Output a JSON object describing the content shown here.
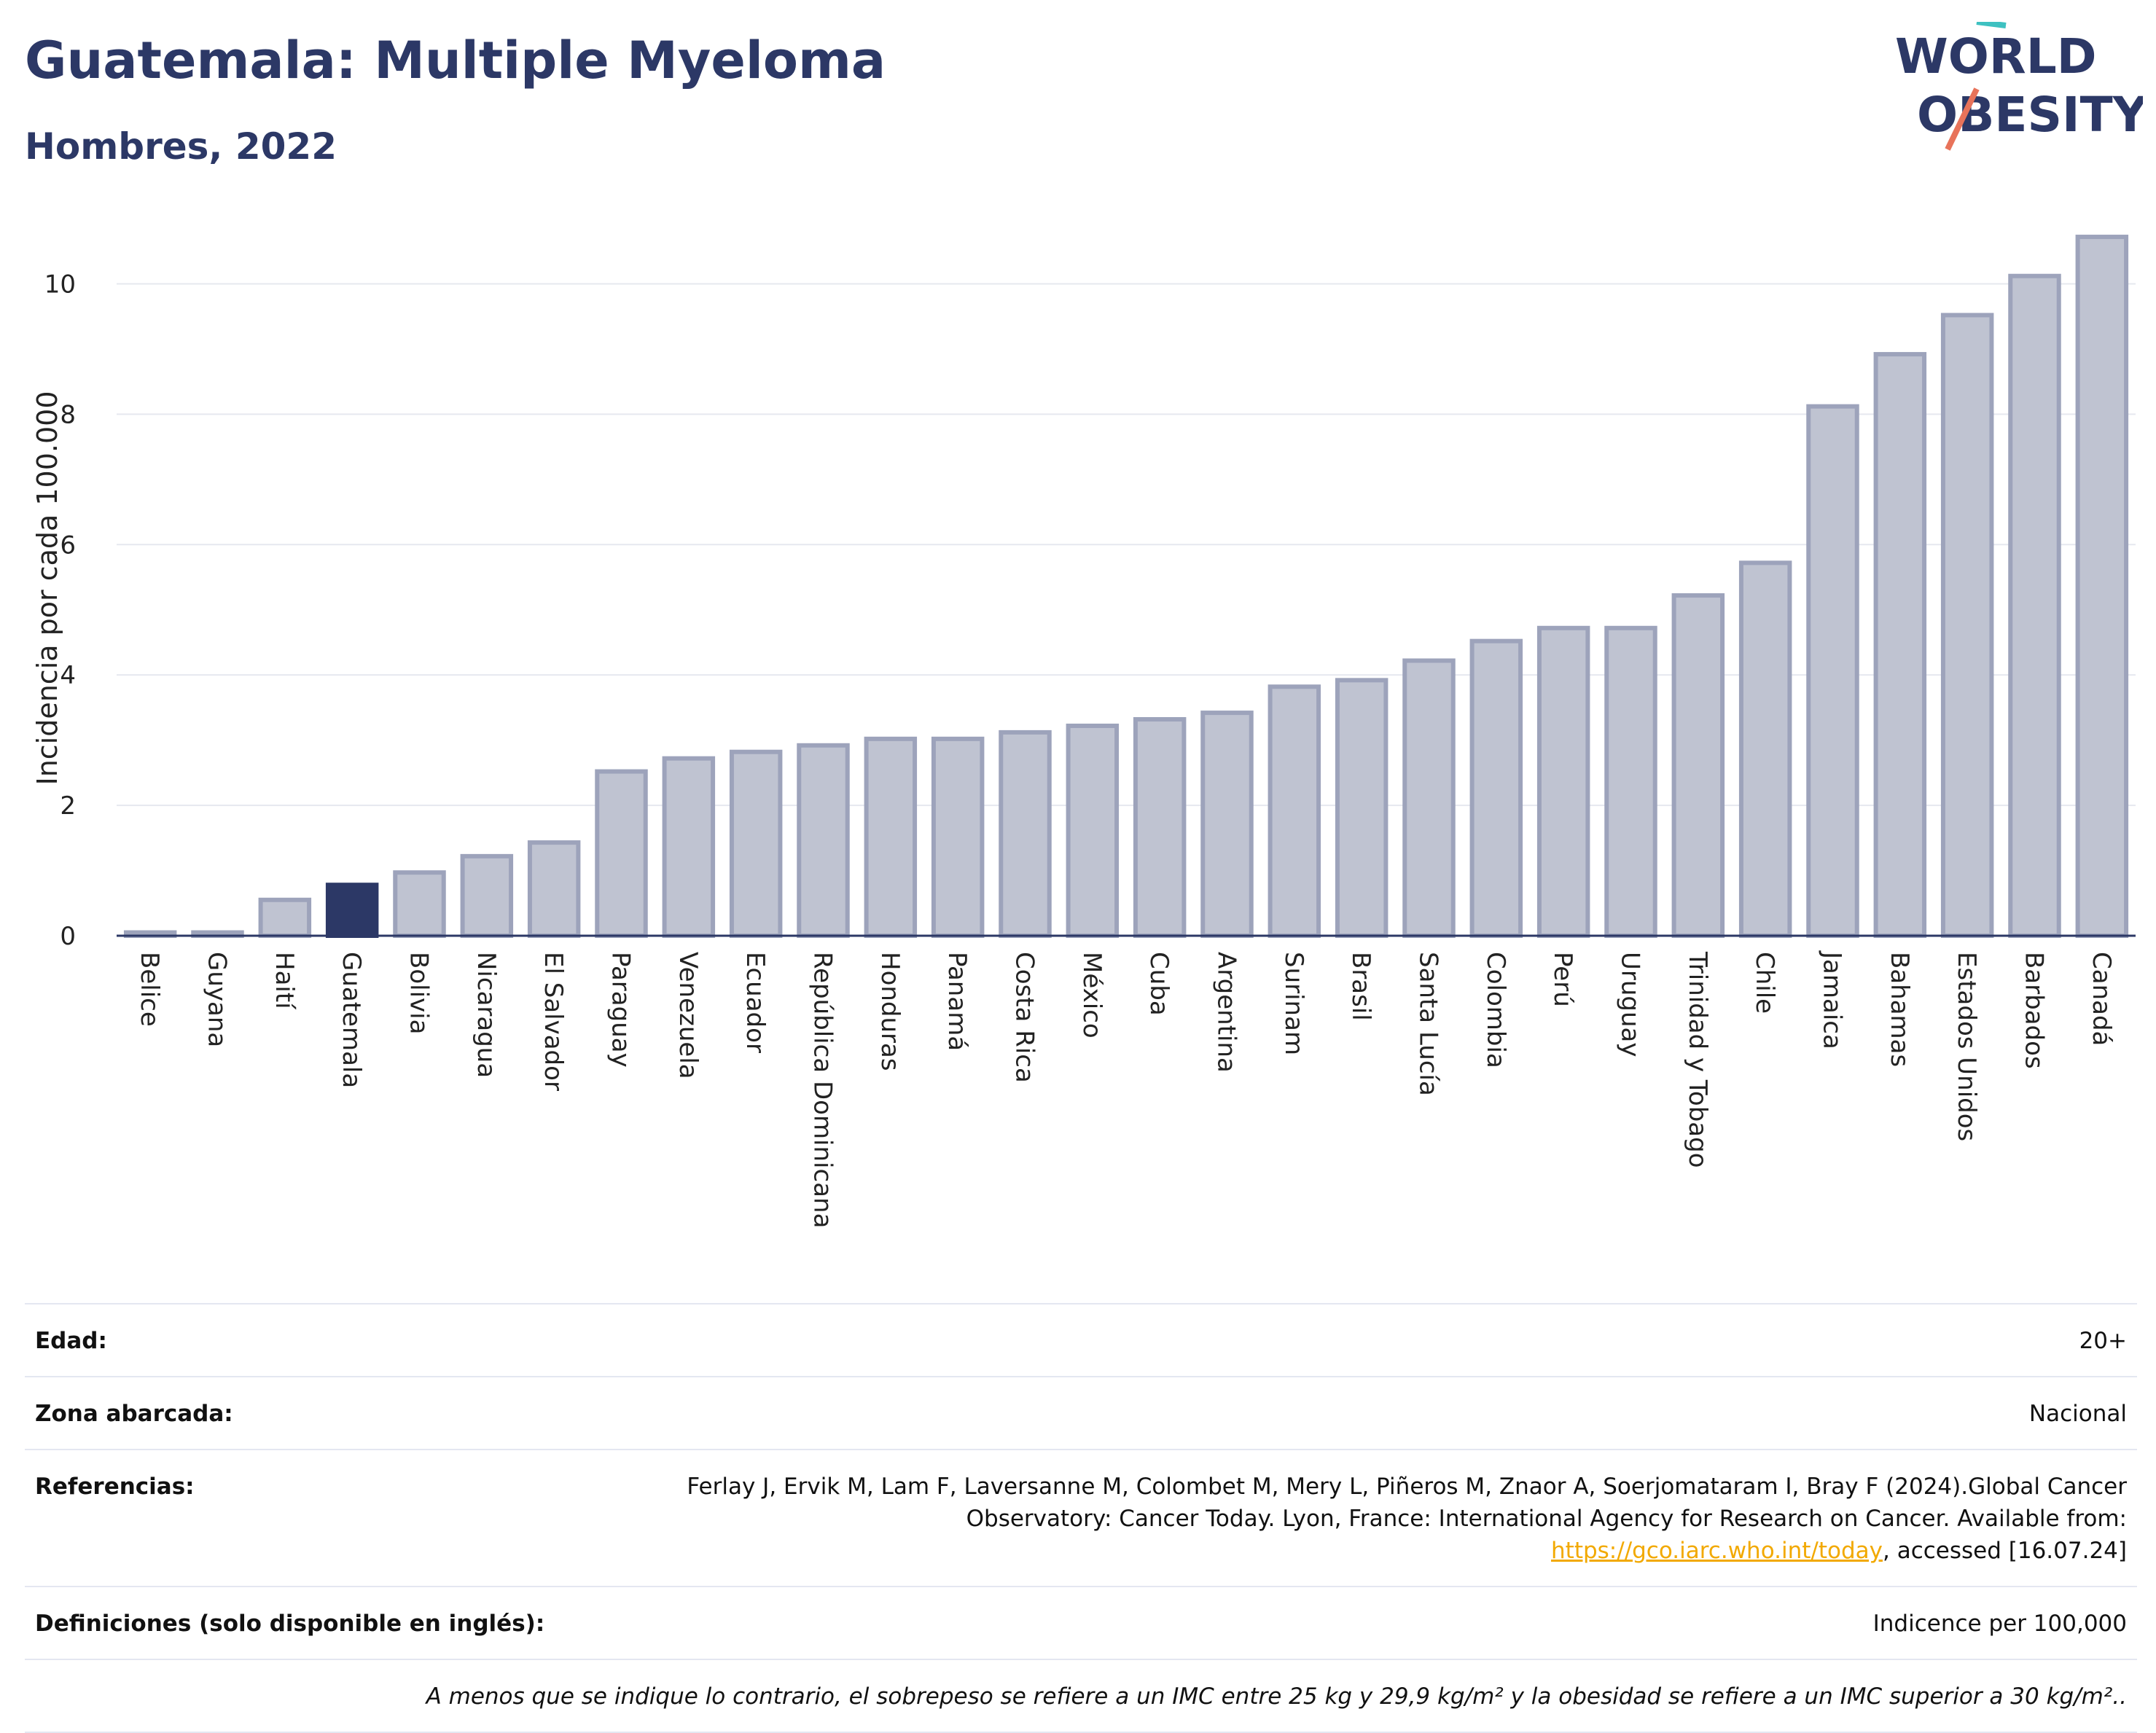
{
  "header": {
    "title": "Guatemala: Multiple Myeloma",
    "subtitle": "Hombres, 2022",
    "logo_text_top": "WORLD",
    "logo_text_bottom": "OBESITY"
  },
  "colors": {
    "highlight_bar": "#2c3866",
    "bar": "#bfc3d1",
    "bar_border": "#9da3bb",
    "title": "#2c3866",
    "link": "#f2a900",
    "logo_teal": "#3ec1c1",
    "logo_coral": "#e8735a"
  },
  "chart_data": {
    "type": "bar",
    "ylabel": "Incidencia por cada 100.000",
    "ylim": [
      0,
      11
    ],
    "yticks": [
      0,
      2,
      4,
      6,
      8,
      10
    ],
    "grid": true,
    "highlight": "Guatemala",
    "categories": [
      "Belice",
      "Guyana",
      "Haití",
      "Guatemala",
      "Bolivia",
      "Nicaragua",
      "El Salvador",
      "Paraguay",
      "Venezuela",
      "Ecuador",
      "República Dominicana",
      "Honduras",
      "Panamá",
      "Costa Rica",
      "México",
      "Cuba",
      "Argentina",
      "Surinam",
      "Brasil",
      "Santa Lucía",
      "Colombia",
      "Perú",
      "Uruguay",
      "Trinidad y Tobago",
      "Chile",
      "Jamaica",
      "Bahamas",
      "Estados Unidos",
      "Barbados",
      "Canadá"
    ],
    "values": [
      0.05,
      0.05,
      0.55,
      0.78,
      0.97,
      1.22,
      1.43,
      2.52,
      2.72,
      2.82,
      2.92,
      3.02,
      3.02,
      3.12,
      3.22,
      3.32,
      3.42,
      3.82,
      3.92,
      4.22,
      4.52,
      4.72,
      4.72,
      5.22,
      5.72,
      8.12,
      8.92,
      9.52,
      10.12,
      10.72
    ]
  },
  "info": {
    "age_label": "Edad:",
    "age_value": "20+",
    "area_label": "Zona abarcada:",
    "area_value": "Nacional",
    "ref_label": "Referencias:",
    "ref_text_1": "Ferlay J, Ervik M, Lam F, Laversanne M, Colombet M, Mery L, Piñeros M, Znaor A, Soerjomataram I, Bray F (2024).Global Cancer Observatory: Cancer Today. Lyon, France: International Agency for Research on Cancer. Available from: ",
    "ref_link": "https://gco.iarc.who.int/today",
    "ref_text_2": ", accessed [16.07.24]",
    "def_label": "Definiciones (solo disponible en inglés):",
    "def_value": "Indicence per 100,000",
    "note": "A menos que se indique lo contrario, el sobrepeso se refiere a un IMC entre 25 kg y 29,9 kg/m² y la obesidad se refiere a un IMC superior a 30 kg/m².."
  }
}
